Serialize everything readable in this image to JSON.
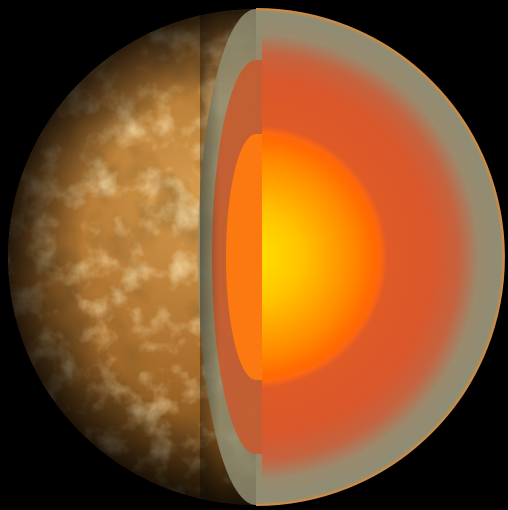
{
  "scene": {
    "subject": "",
    "layers": [
      {
        "id": "surface",
        "color": "#b9803a"
      },
      {
        "id": "crust",
        "color": "#8f8d72"
      },
      {
        "id": "mantle",
        "color": "#d8572a"
      },
      {
        "id": "core",
        "color": "#ffb000"
      }
    ],
    "colors": {
      "background": "#000000",
      "surface_dark": "#3a2208",
      "surface_mid": "#a9702e",
      "surface_light": "#f0c777",
      "crust": "#8c8c72",
      "mantle_outer": "#c95a32",
      "mantle_inner": "#e25a1c",
      "core_outer": "#ff6a00",
      "core_inner": "#ffd200"
    }
  }
}
